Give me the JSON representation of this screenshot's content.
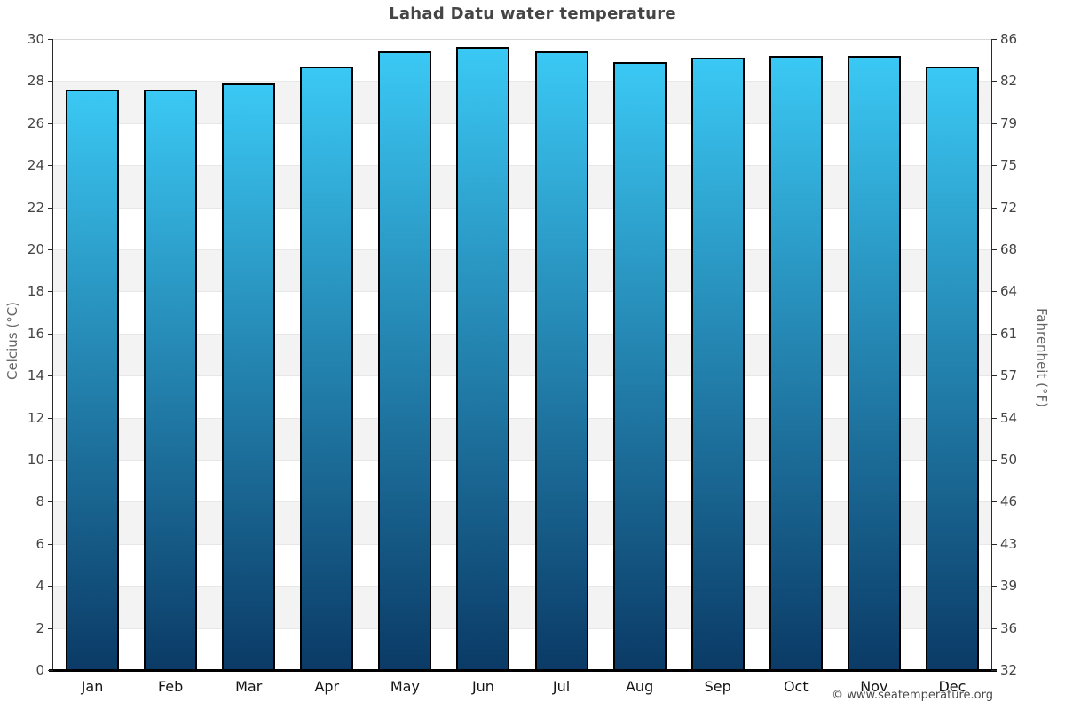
{
  "page": {
    "title": "Lahad Datu water temperature",
    "watermark": "© www.seatemperature.org"
  },
  "chart_data": {
    "type": "bar",
    "title": "Lahad Datu water temperature",
    "categories": [
      "Jan",
      "Feb",
      "Mar",
      "Apr",
      "May",
      "Jun",
      "Jul",
      "Aug",
      "Sep",
      "Oct",
      "Nov",
      "Dec"
    ],
    "values": [
      27.6,
      27.6,
      27.9,
      28.7,
      29.4,
      29.6,
      29.4,
      28.9,
      29.1,
      29.2,
      29.2,
      28.7
    ],
    "unit": "°C",
    "ylabel_left": "Celcius (°C)",
    "ylabel_right": "Fahrenheit (°F)",
    "ylim": [
      0,
      30
    ],
    "ytick_step_celsius": 2,
    "yticks_celsius": [
      30,
      28,
      26,
      24,
      22,
      20,
      18,
      16,
      14,
      12,
      10,
      8,
      6,
      4,
      2,
      0
    ],
    "yticks_fahrenheit": [
      86,
      82,
      79,
      75,
      72,
      68,
      64,
      61,
      57,
      54,
      50,
      46,
      43,
      39,
      36,
      32
    ],
    "grid": "alternating-horizontal-bands",
    "legend": "none",
    "colors": {
      "bar_gradient_top": "#3bc8f4",
      "bar_gradient_bottom": "#0b3a66",
      "bar_border": "#000000",
      "band_shaded": "#f3f3f3",
      "band_plain": "#ffffff",
      "axis_line": "#2b2b2b",
      "baseline": "#000000",
      "title_color": "#454545",
      "tick_label_color": "#444444",
      "month_label_color": "#141414",
      "axis_title_color": "#666666",
      "watermark_color": "#4a4a4a"
    }
  }
}
